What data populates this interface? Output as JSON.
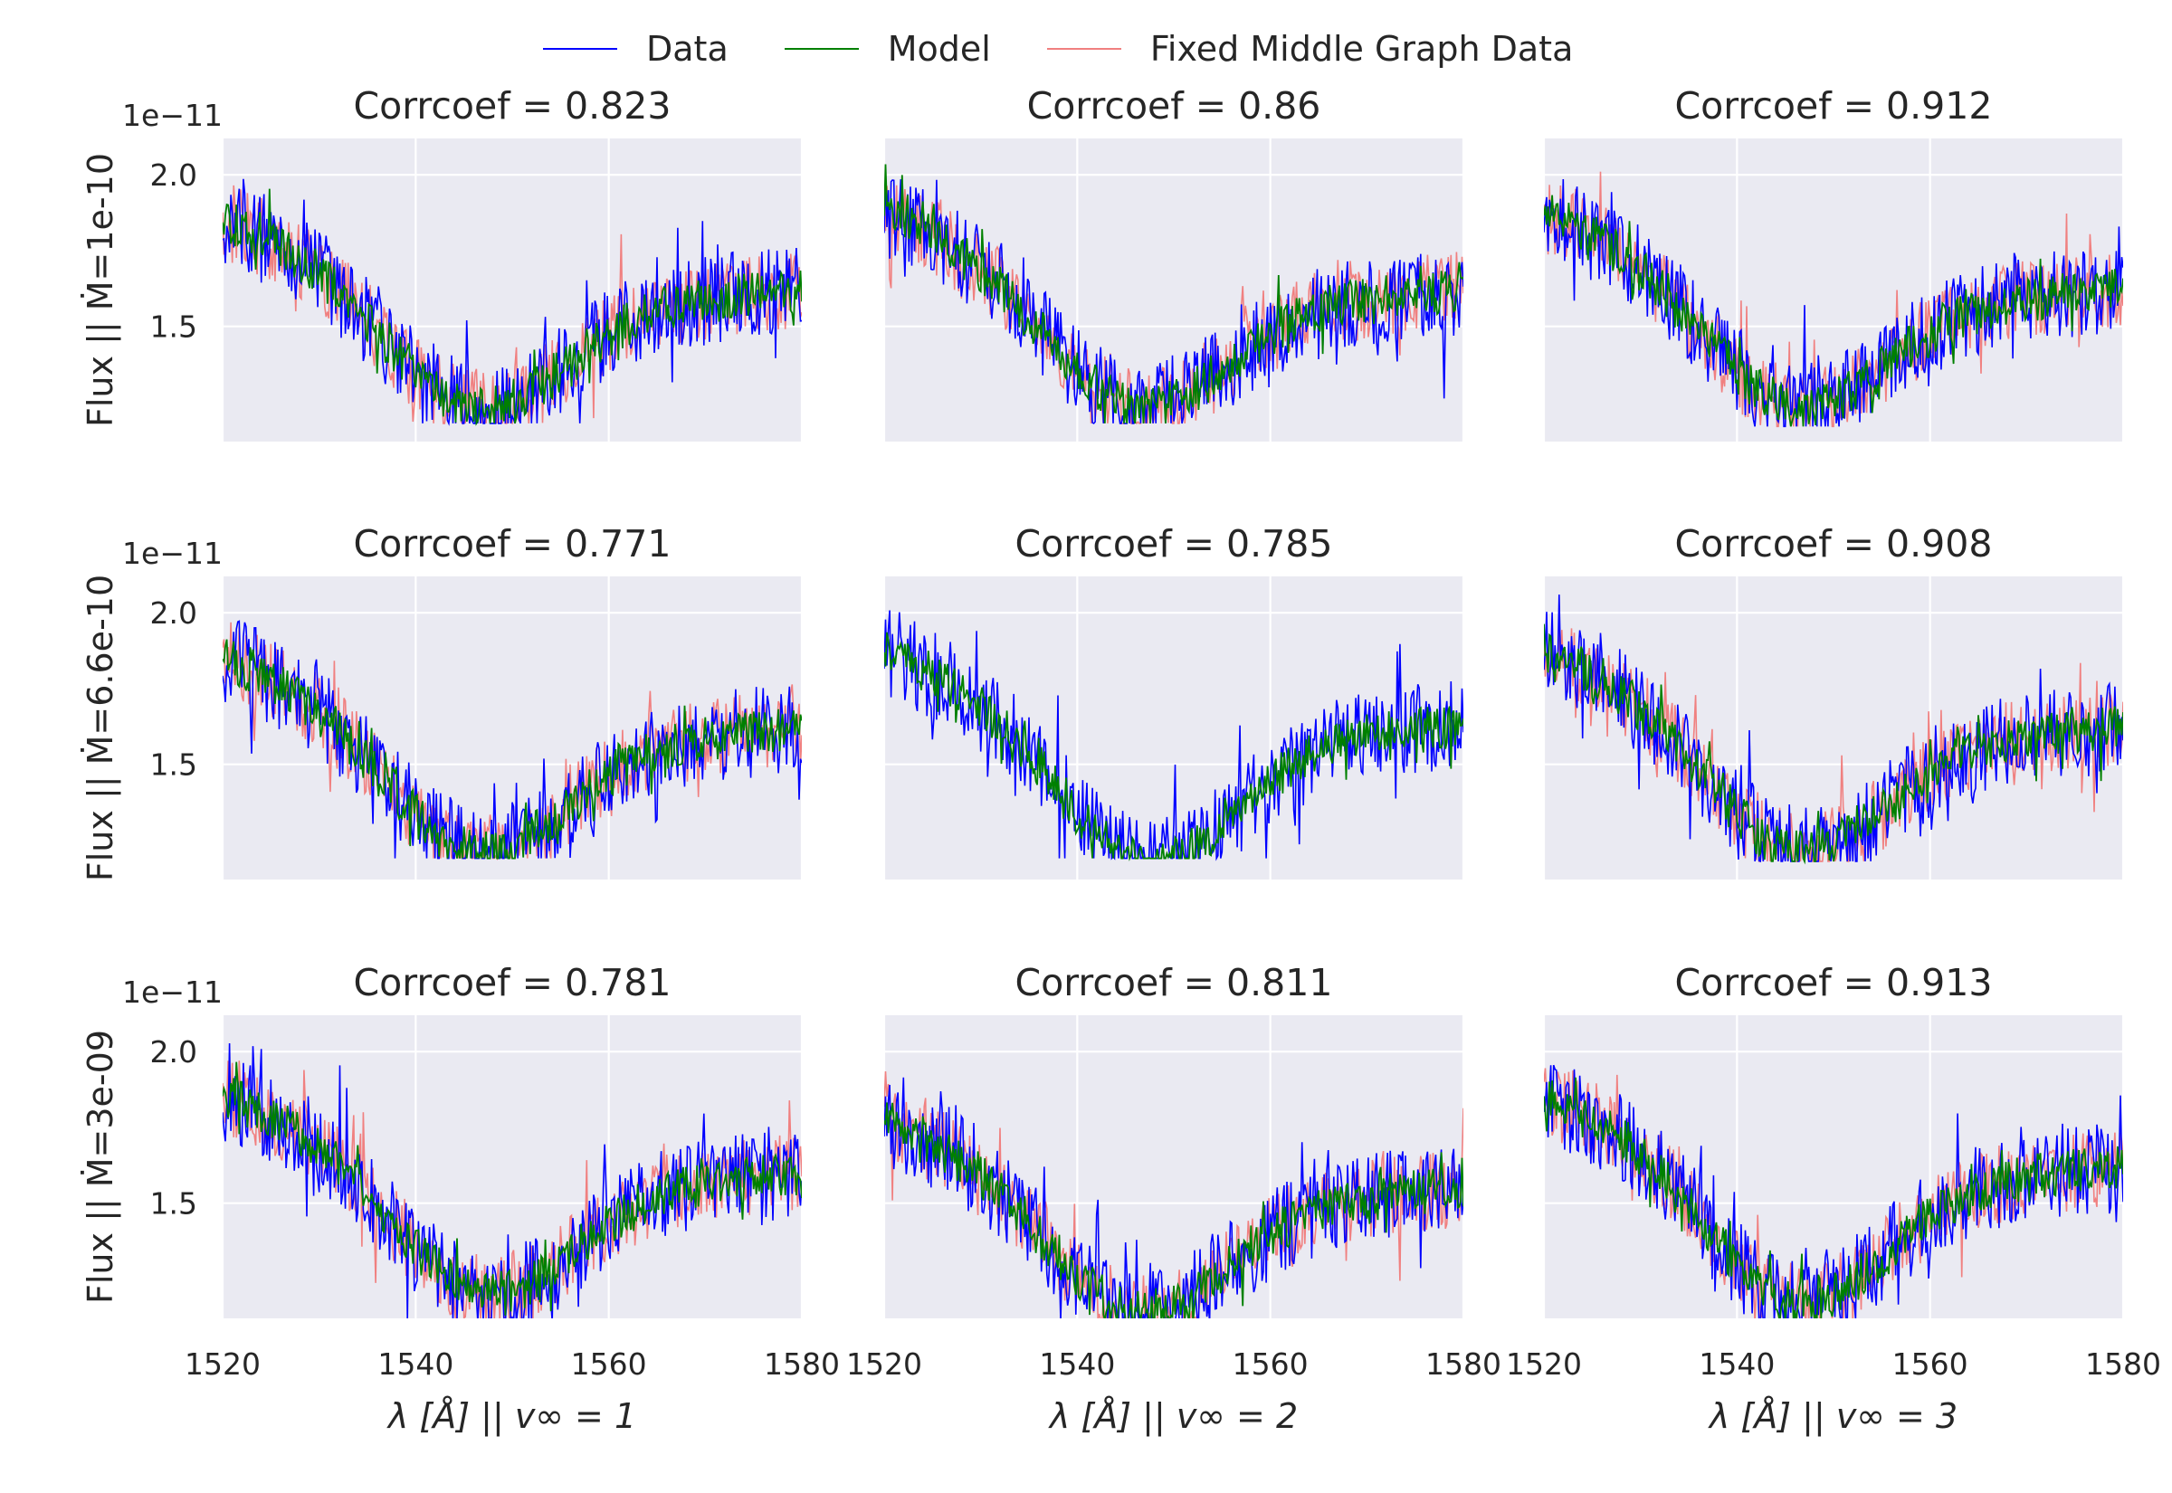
{
  "legend": {
    "data_label": "Data",
    "model_label": "Model",
    "fixed_label": "Fixed Middle Graph Data"
  },
  "colors": {
    "data": "#0000ff",
    "model": "#008000",
    "fixed": "#f08080",
    "axes_bg": "#eaeaf2",
    "grid": "#ffffff",
    "text": "#262626"
  },
  "chart_data": {
    "type": "line",
    "layout": "3x3 grid, shared x axis per column, shared y axis per row",
    "grid": true,
    "legend_placement": "top-center",
    "x_range": [
      1520,
      1580
    ],
    "x_ticks": [
      1520,
      1540,
      1560,
      1580
    ],
    "y_range": [
      1.12,
      2.12
    ],
    "y_ticks": [
      1.5,
      2.0
    ],
    "y_offset_label": "1e−11",
    "col_xlabels": [
      "λ [Å] || v∞ = 1",
      "λ [Å] || v∞ = 2",
      "λ [Å] || v∞ = 3"
    ],
    "row_ylabels": [
      "Flux || Ṁ=1e-10",
      "Flux || Ṁ=6.6e-10",
      "Flux || Ṁ=3e-09"
    ],
    "series_names": [
      "Data",
      "Model",
      "Fixed Middle Graph Data"
    ],
    "profile_note": "All panels: flux ~1.85 at 1520 Å, declining to a minimum ~1.35 near 1545-1547 Å, recovering to ~1.6 by 1580 Å, with strong point-to-point noise.",
    "panels": [
      {
        "row": 0,
        "col": 0,
        "title": "Corrcoef = 0.823",
        "has_fixed": true,
        "start": 1.86,
        "min": 1.36,
        "min_x": 1546,
        "end": 1.62,
        "data_low": 1.18,
        "data_high": 2.07
      },
      {
        "row": 0,
        "col": 1,
        "title": "Corrcoef = 0.86",
        "has_fixed": true,
        "start": 1.88,
        "min": 1.36,
        "min_x": 1546,
        "end": 1.62,
        "data_low": 1.18,
        "data_high": 2.07
      },
      {
        "row": 0,
        "col": 2,
        "title": "Corrcoef = 0.912",
        "has_fixed": true,
        "start": 1.88,
        "min": 1.36,
        "min_x": 1546,
        "end": 1.62,
        "data_low": 1.17,
        "data_high": 2.02
      },
      {
        "row": 1,
        "col": 0,
        "title": "Corrcoef = 0.771",
        "has_fixed": true,
        "start": 1.86,
        "min": 1.34,
        "min_x": 1546,
        "end": 1.62,
        "data_low": 1.19,
        "data_high": 2.07
      },
      {
        "row": 1,
        "col": 1,
        "title": "Corrcoef = 0.785",
        "has_fixed": false,
        "start": 1.88,
        "min": 1.3,
        "min_x": 1547,
        "end": 1.63,
        "data_low": 1.19,
        "data_high": 2.07
      },
      {
        "row": 1,
        "col": 2,
        "title": "Corrcoef = 0.908",
        "has_fixed": true,
        "start": 1.88,
        "min": 1.34,
        "min_x": 1546,
        "end": 1.62,
        "data_low": 1.18,
        "data_high": 2.06
      },
      {
        "row": 2,
        "col": 0,
        "title": "Corrcoef = 0.781",
        "has_fixed": true,
        "start": 1.86,
        "min": 1.33,
        "min_x": 1547,
        "end": 1.6,
        "data_low": 1.11,
        "data_high": 2.03
      },
      {
        "row": 2,
        "col": 1,
        "title": "Corrcoef = 0.811",
        "has_fixed": true,
        "start": 1.78,
        "min": 1.27,
        "min_x": 1546,
        "end": 1.55,
        "data_low": 1.11,
        "data_high": 2.03
      },
      {
        "row": 2,
        "col": 2,
        "title": "Corrcoef = 0.913",
        "has_fixed": true,
        "start": 1.86,
        "min": 1.3,
        "min_x": 1546,
        "end": 1.62,
        "data_low": 1.11,
        "data_high": 2.03
      }
    ]
  }
}
